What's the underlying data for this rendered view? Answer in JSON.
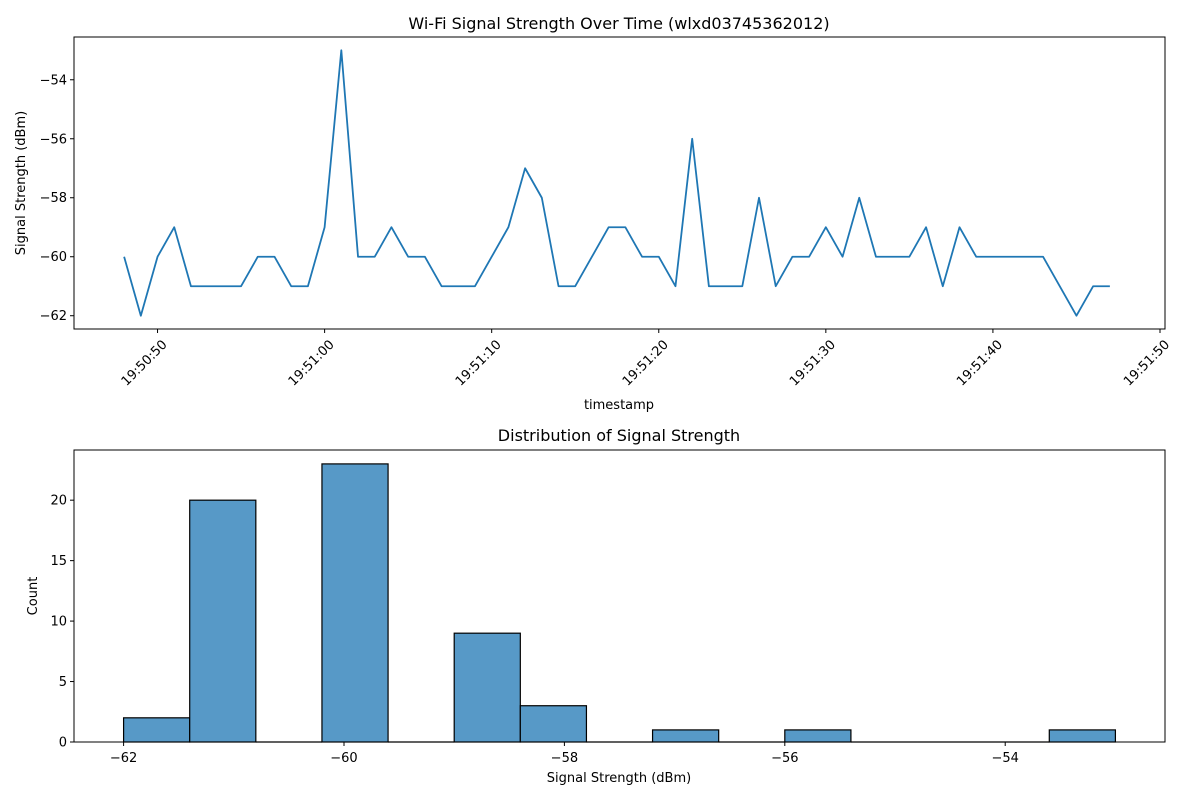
{
  "chart_data": [
    {
      "type": "line",
      "title": "Wi-Fi Signal Strength Over Time (wlxd03745362012)",
      "xlabel": "timestamp",
      "ylabel": "Signal Strength (dBm)",
      "x_start": "19:50:48",
      "x_step_seconds": 1,
      "xticks": [
        "19:50:50",
        "19:51:00",
        "19:51:10",
        "19:51:20",
        "19:51:30",
        "19:51:40",
        "19:51:50"
      ],
      "xlim": [
        "19:50:45",
        "19:51:50.3"
      ],
      "yticks": [
        -54,
        -56,
        -58,
        -60,
        -62
      ],
      "ylim": [
        -62.45,
        -52.55
      ],
      "color": "#1f77b4",
      "grid": false,
      "values": [
        -60,
        -62,
        -60,
        -59,
        -61,
        -61,
        -61,
        -61,
        -60,
        -60,
        -61,
        -61,
        -59,
        -53,
        -60,
        -60,
        -59,
        -60,
        -60,
        -61,
        -61,
        -61,
        -60,
        -59,
        -57,
        -58,
        -61,
        -61,
        -60,
        -59,
        -59,
        -60,
        -60,
        -61,
        -56,
        -61,
        -61,
        -61,
        -58,
        -61,
        -60,
        -60,
        -59,
        -60,
        -58,
        -60,
        -60,
        -60,
        -59,
        -61,
        -59,
        -60,
        -60,
        -60,
        -60,
        -60,
        -61,
        -62,
        -61,
        -61
      ]
    },
    {
      "type": "bar",
      "subtype": "histogram",
      "title": "Distribution of Signal Strength",
      "xlabel": "Signal Strength (dBm)",
      "ylabel": "Count",
      "bin_edges": [
        -62,
        -61.4,
        -60.8,
        -60.2,
        -59.6,
        -59,
        -58.4,
        -57.8,
        -57.2,
        -56.6,
        -56,
        -55.4,
        -54.8,
        -54.2,
        -53.6,
        -53
      ],
      "counts": [
        2,
        20,
        0,
        23,
        0,
        9,
        3,
        0,
        1,
        0,
        1,
        0,
        0,
        0,
        1
      ],
      "xticks": [
        -62,
        -60,
        -58,
        -56,
        -54
      ],
      "yticks": [
        0,
        5,
        10,
        15,
        20
      ],
      "xlim": [
        -62.45,
        -52.55
      ],
      "ylim": [
        0,
        24.15
      ],
      "color": "#5799c7",
      "edge_color": "#000000",
      "grid": false
    }
  ]
}
